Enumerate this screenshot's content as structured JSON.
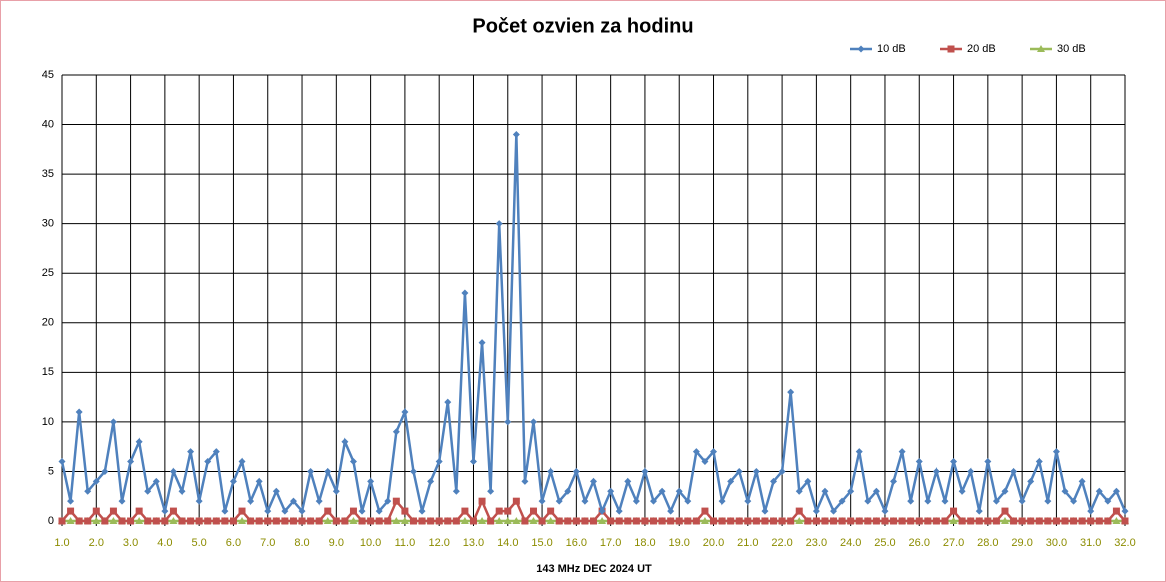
{
  "chart_data": {
    "type": "line",
    "title": "Počet ozvien za hodinu",
    "x_label": "143 MHz DEC  2024  UT",
    "grid": true,
    "legend": "top-right",
    "x": [
      1.0,
      1.25,
      1.5,
      1.75,
      2.0,
      2.25,
      2.5,
      2.75,
      3.0,
      3.25,
      3.5,
      3.75,
      4.0,
      4.25,
      4.5,
      4.75,
      5.0,
      5.25,
      5.5,
      5.75,
      6.0,
      6.25,
      6.5,
      6.75,
      7.0,
      7.25,
      7.5,
      7.75,
      8.0,
      8.25,
      8.5,
      8.75,
      9.0,
      9.25,
      9.5,
      9.75,
      10.0,
      10.25,
      10.5,
      10.75,
      11.0,
      11.25,
      11.5,
      11.75,
      12.0,
      12.25,
      12.5,
      12.75,
      13.0,
      13.25,
      13.5,
      13.75,
      14.0,
      14.25,
      14.5,
      14.75,
      15.0,
      15.25,
      15.5,
      15.75,
      16.0,
      16.25,
      16.5,
      16.75,
      17.0,
      17.25,
      17.5,
      17.75,
      18.0,
      18.25,
      18.5,
      18.75,
      19.0,
      19.25,
      19.5,
      19.75,
      20.0,
      20.25,
      20.5,
      20.75,
      21.0,
      21.25,
      21.5,
      21.75,
      22.0,
      22.25,
      22.5,
      22.75,
      23.0,
      23.25,
      23.5,
      23.75,
      24.0,
      24.25,
      24.5,
      24.75,
      25.0,
      25.25,
      25.5,
      25.75,
      26.0,
      26.25,
      26.5,
      26.75,
      27.0,
      27.25,
      27.5,
      27.75,
      28.0,
      28.25,
      28.5,
      28.75,
      29.0,
      29.25,
      29.5,
      29.75,
      30.0,
      30.25,
      30.5,
      30.75,
      31.0,
      31.25,
      31.5,
      31.75,
      32.0
    ],
    "series": [
      {
        "name": "10 dB",
        "color": "#4f81bd",
        "marker": "diamond",
        "values": [
          6,
          2,
          11,
          3,
          4,
          5,
          10,
          2,
          6,
          8,
          3,
          4,
          1,
          5,
          3,
          7,
          2,
          6,
          7,
          1,
          4,
          6,
          2,
          4,
          1,
          3,
          1,
          2,
          1,
          5,
          2,
          5,
          3,
          8,
          6,
          1,
          4,
          1,
          2,
          9,
          11,
          5,
          1,
          4,
          6,
          12,
          3,
          23,
          6,
          18,
          3,
          30,
          10,
          39,
          4,
          10,
          2,
          5,
          2,
          3,
          5,
          2,
          4,
          1,
          3,
          1,
          4,
          2,
          5,
          2,
          3,
          1,
          3,
          2,
          7,
          6,
          7,
          2,
          4,
          5,
          2,
          5,
          1,
          4,
          5,
          13,
          3,
          4,
          1,
          3,
          1,
          2,
          3,
          7,
          2,
          3,
          1,
          4,
          7,
          2,
          6,
          2,
          5,
          2,
          6,
          3,
          5,
          1,
          6,
          2,
          3,
          5,
          2,
          4,
          6,
          2,
          7,
          3,
          2,
          4,
          1,
          3,
          2,
          3,
          1
        ]
      },
      {
        "name": "20 dB",
        "color": "#c0504d",
        "marker": "square",
        "values": [
          0,
          1,
          0,
          0,
          1,
          0,
          1,
          0,
          0,
          1,
          0,
          0,
          0,
          1,
          0,
          0,
          0,
          0,
          0,
          0,
          0,
          1,
          0,
          0,
          0,
          0,
          0,
          0,
          0,
          0,
          0,
          1,
          0,
          0,
          1,
          0,
          0,
          0,
          0,
          2,
          1,
          0,
          0,
          0,
          0,
          0,
          0,
          1,
          0,
          2,
          0,
          1,
          1,
          2,
          0,
          1,
          0,
          1,
          0,
          0,
          0,
          0,
          0,
          1,
          0,
          0,
          0,
          0,
          0,
          0,
          0,
          0,
          0,
          0,
          0,
          1,
          0,
          0,
          0,
          0,
          0,
          0,
          0,
          0,
          0,
          0,
          1,
          0,
          0,
          0,
          0,
          0,
          0,
          0,
          0,
          0,
          0,
          0,
          0,
          0,
          0,
          0,
          0,
          0,
          1,
          0,
          0,
          0,
          0,
          0,
          1,
          0,
          0,
          0,
          0,
          0,
          0,
          0,
          0,
          0,
          0,
          0,
          0,
          1,
          0
        ]
      },
      {
        "name": "30 dB",
        "color": "#9bbb59",
        "marker": "triangle",
        "values": [
          0,
          0,
          0,
          0,
          0,
          0,
          0,
          0,
          0,
          0,
          0,
          0,
          0,
          0,
          0,
          0,
          0,
          0,
          0,
          0,
          0,
          0,
          0,
          0,
          0,
          0,
          0,
          0,
          0,
          0,
          0,
          0,
          0,
          0,
          0,
          0,
          0,
          0,
          0,
          0,
          0,
          0,
          0,
          0,
          0,
          0,
          0,
          0,
          0,
          0,
          0,
          0,
          0,
          0,
          0,
          0,
          0,
          0,
          0,
          0,
          0,
          0,
          0,
          0,
          0,
          0,
          0,
          0,
          0,
          0,
          0,
          0,
          0,
          0,
          0,
          0,
          0,
          0,
          0,
          0,
          0,
          0,
          0,
          0,
          0,
          0,
          0,
          0,
          0,
          0,
          0,
          0,
          0,
          0,
          0,
          0,
          0,
          0,
          0,
          0,
          0,
          0,
          0,
          0,
          0,
          0,
          0,
          0,
          0,
          0,
          0,
          0,
          0,
          0,
          0,
          0,
          0,
          0,
          0,
          0,
          0,
          0,
          0,
          0,
          0
        ]
      }
    ],
    "xlim": [
      1,
      32
    ],
    "xticks": [
      {
        "value": 1,
        "label": "1.0"
      },
      {
        "value": 2,
        "label": "2.0"
      },
      {
        "value": 3,
        "label": "3.0"
      },
      {
        "value": 4,
        "label": "4.0"
      },
      {
        "value": 5,
        "label": "5.0"
      },
      {
        "value": 6,
        "label": "6.0"
      },
      {
        "value": 7,
        "label": "7.0"
      },
      {
        "value": 8,
        "label": "8.0"
      },
      {
        "value": 9,
        "label": "9.0"
      },
      {
        "value": 10,
        "label": "10.0"
      },
      {
        "value": 11,
        "label": "11.0"
      },
      {
        "value": 12,
        "label": "12.0"
      },
      {
        "value": 13,
        "label": "13.0"
      },
      {
        "value": 14,
        "label": "14.0"
      },
      {
        "value": 15,
        "label": "15.0"
      },
      {
        "value": 16,
        "label": "16.0"
      },
      {
        "value": 17,
        "label": "17.0"
      },
      {
        "value": 18,
        "label": "18.0"
      },
      {
        "value": 19,
        "label": "19.0"
      },
      {
        "value": 20,
        "label": "20.0"
      },
      {
        "value": 21,
        "label": "21.0"
      },
      {
        "value": 22,
        "label": "22.0"
      },
      {
        "value": 23,
        "label": "23.0"
      },
      {
        "value": 24,
        "label": "24.0"
      },
      {
        "value": 25,
        "label": "25.0"
      },
      {
        "value": 26,
        "label": "26.0"
      },
      {
        "value": 27,
        "label": "27.0"
      },
      {
        "value": 28,
        "label": "28.0"
      },
      {
        "value": 29,
        "label": "29.0"
      },
      {
        "value": 30,
        "label": "30.0"
      },
      {
        "value": 31,
        "label": "31.0"
      },
      {
        "value": 32,
        "label": "32.0"
      }
    ],
    "ylim": [
      0,
      45
    ],
    "yticks": [
      0,
      5,
      10,
      15,
      20,
      25,
      30,
      35,
      40,
      45
    ]
  }
}
